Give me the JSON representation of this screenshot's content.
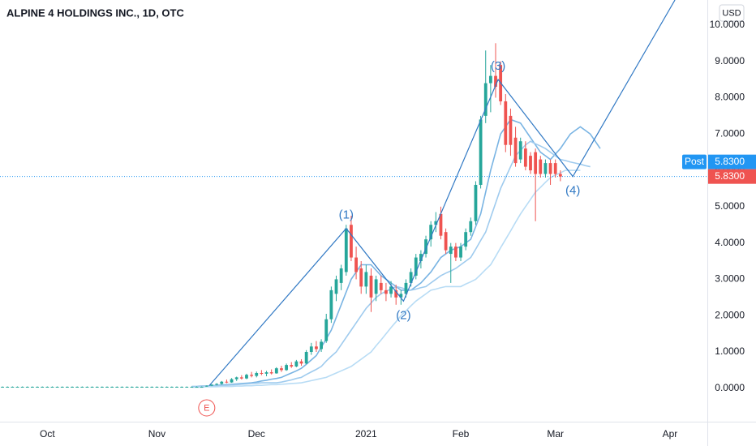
{
  "chart_data": {
    "type": "candlestick",
    "title": "ALPINE 4 HOLDINGS INC., 1D, OTC",
    "currency": "USD",
    "categories": [
      null,
      null,
      null,
      null,
      null,
      null,
      null,
      null,
      null,
      "Oct",
      null,
      null,
      null,
      null,
      null,
      null,
      null,
      null,
      null,
      null,
      null,
      null,
      null,
      null,
      null,
      null,
      null,
      null,
      null,
      null,
      null,
      "Nov",
      null,
      null,
      null,
      null,
      null,
      null,
      null,
      null,
      null,
      null,
      null,
      null,
      null,
      null,
      null,
      null,
      null,
      null,
      null,
      "Dec",
      null,
      null,
      null,
      null,
      null,
      null,
      null,
      null,
      null,
      null,
      null,
      null,
      null,
      null,
      null,
      null,
      null,
      null,
      null,
      null,
      null,
      "2021",
      null,
      null,
      null,
      null,
      null,
      null,
      null,
      null,
      null,
      null,
      null,
      null,
      null,
      null,
      null,
      null,
      null,
      null,
      "Feb",
      null,
      null,
      null,
      null,
      null,
      null,
      null,
      null,
      null,
      null,
      null,
      null,
      null,
      null,
      null,
      null,
      null,
      null,
      "Mar",
      null,
      null,
      null,
      null,
      null,
      null,
      null,
      null,
      null,
      null,
      null,
      null,
      null,
      null,
      null,
      null,
      null,
      null,
      null,
      null,
      null,
      null,
      "Apr",
      null,
      null,
      null,
      null,
      null,
      null,
      null
    ],
    "open": [
      0.04,
      0.04,
      0.04,
      0.04,
      0.04,
      0.04,
      0.04,
      0.04,
      0.04,
      0.04,
      0.04,
      0.04,
      0.04,
      0.04,
      0.04,
      0.04,
      0.04,
      0.04,
      0.04,
      0.04,
      0.04,
      0.04,
      0.04,
      0.04,
      0.04,
      0.04,
      0.04,
      0.04,
      0.04,
      0.04,
      0.04,
      0.04,
      0.04,
      0.04,
      0.04,
      0.04,
      0.04,
      0.04,
      0.04,
      0.04,
      0.04,
      0.05,
      0.07,
      0.1,
      0.12,
      0.18,
      0.16,
      0.25,
      0.3,
      0.27,
      0.37,
      0.34,
      0.42,
      0.4,
      0.44,
      0.41,
      0.55,
      0.5,
      0.64,
      0.6,
      0.74,
      0.68,
      1.0,
      1.15,
      1.08,
      1.3,
      1.9,
      2.6,
      2.9,
      3.2,
      4.5,
      3.6,
      3.3,
      2.8,
      3.1,
      2.6,
      2.9,
      2.7,
      2.6,
      2.7,
      2.5,
      2.6,
      2.9,
      3.1,
      3.5,
      3.7,
      4.1,
      4.5,
      4.8,
      4.3,
      3.7,
      3.9,
      3.6,
      3.9,
      4.3,
      4.6,
      5.6,
      7.5,
      8.4,
      8.6,
      8.9,
      7.9,
      7.5,
      6.9,
      6.3,
      6.6,
      6.4,
      6.5,
      6.3,
      5.9,
      6.2,
      6.2,
      5.9,
      null,
      null,
      null,
      null,
      null,
      null,
      null,
      null,
      null,
      null,
      null,
      null,
      null,
      null,
      null,
      null,
      null,
      null,
      null,
      null,
      null,
      null,
      null,
      null,
      null,
      null,
      null,
      null,
      null
    ],
    "high": [
      0.05,
      0.05,
      0.05,
      0.05,
      0.05,
      0.05,
      0.05,
      0.05,
      0.05,
      0.05,
      0.05,
      0.05,
      0.05,
      0.05,
      0.05,
      0.05,
      0.05,
      0.05,
      0.05,
      0.05,
      0.05,
      0.05,
      0.05,
      0.05,
      0.05,
      0.05,
      0.05,
      0.05,
      0.05,
      0.05,
      0.05,
      0.05,
      0.05,
      0.05,
      0.05,
      0.05,
      0.05,
      0.05,
      0.05,
      0.05,
      0.05,
      0.08,
      0.11,
      0.14,
      0.2,
      0.24,
      0.28,
      0.32,
      0.36,
      0.4,
      0.45,
      0.46,
      0.5,
      0.48,
      0.52,
      0.58,
      0.62,
      0.68,
      0.72,
      0.78,
      0.8,
      1.05,
      1.25,
      1.3,
      1.35,
      2.05,
      2.8,
      3.1,
      3.4,
      4.5,
      4.75,
      3.9,
      3.5,
      3.4,
      3.3,
      3.1,
      3.1,
      2.9,
      2.95,
      2.85,
      2.7,
      3.0,
      3.3,
      3.7,
      3.8,
      4.2,
      4.6,
      4.85,
      5.0,
      4.4,
      4.0,
      4.0,
      4.0,
      4.4,
      4.7,
      5.7,
      7.5,
      9.3,
      8.9,
      9.5,
      9.0,
      8.1,
      7.7,
      7.2,
      6.9,
      6.8,
      6.5,
      6.6,
      6.4,
      6.3,
      6.3,
      6.3,
      6.0,
      null,
      null,
      null,
      null,
      null,
      null,
      null,
      null,
      null,
      null,
      null,
      null,
      null,
      null,
      null,
      null,
      null,
      null,
      null,
      null,
      null,
      null,
      null,
      null,
      null,
      null,
      null,
      null,
      null
    ],
    "low": [
      0.03,
      0.03,
      0.03,
      0.03,
      0.03,
      0.03,
      0.03,
      0.03,
      0.03,
      0.03,
      0.03,
      0.03,
      0.03,
      0.03,
      0.03,
      0.03,
      0.03,
      0.03,
      0.03,
      0.03,
      0.03,
      0.03,
      0.03,
      0.03,
      0.03,
      0.03,
      0.03,
      0.03,
      0.03,
      0.03,
      0.03,
      0.03,
      0.03,
      0.03,
      0.03,
      0.03,
      0.03,
      0.03,
      0.03,
      0.03,
      0.03,
      0.04,
      0.06,
      0.08,
      0.1,
      0.14,
      0.15,
      0.2,
      0.24,
      0.25,
      0.3,
      0.3,
      0.36,
      0.33,
      0.38,
      0.4,
      0.45,
      0.48,
      0.56,
      0.58,
      0.62,
      0.66,
      0.92,
      1.0,
      1.0,
      1.25,
      1.8,
      2.4,
      2.7,
      3.1,
      3.5,
      3.0,
      2.6,
      2.6,
      2.1,
      2.4,
      2.6,
      2.4,
      2.5,
      2.3,
      2.3,
      2.5,
      2.8,
      3.0,
      3.3,
      3.6,
      3.9,
      4.3,
      4.1,
      3.7,
      2.9,
      3.5,
      3.5,
      3.8,
      4.2,
      4.5,
      5.5,
      7.3,
      7.6,
      8.0,
      7.8,
      6.5,
      6.4,
      6.1,
      6.2,
      6.0,
      5.9,
      4.6,
      5.8,
      5.8,
      5.6,
      5.8,
      5.7,
      null,
      null,
      null,
      null,
      null,
      null,
      null,
      null,
      null,
      null,
      null,
      null,
      null,
      null,
      null,
      null,
      null,
      null,
      null,
      null,
      null,
      null,
      null,
      null,
      null,
      null,
      null,
      null,
      null
    ],
    "close": [
      0.04,
      0.04,
      0.04,
      0.04,
      0.04,
      0.04,
      0.04,
      0.04,
      0.04,
      0.04,
      0.04,
      0.04,
      0.04,
      0.04,
      0.04,
      0.04,
      0.04,
      0.04,
      0.04,
      0.04,
      0.04,
      0.04,
      0.04,
      0.04,
      0.04,
      0.04,
      0.04,
      0.04,
      0.04,
      0.04,
      0.04,
      0.04,
      0.04,
      0.04,
      0.04,
      0.04,
      0.04,
      0.04,
      0.04,
      0.04,
      0.04,
      0.07,
      0.1,
      0.12,
      0.18,
      0.16,
      0.25,
      0.3,
      0.27,
      0.37,
      0.34,
      0.42,
      0.4,
      0.44,
      0.41,
      0.55,
      0.5,
      0.64,
      0.6,
      0.74,
      0.68,
      1.0,
      1.15,
      1.08,
      1.28,
      1.9,
      2.7,
      3.0,
      3.3,
      4.4,
      3.6,
      3.2,
      2.8,
      3.2,
      2.5,
      3.0,
      2.7,
      2.6,
      2.8,
      2.5,
      2.6,
      2.9,
      3.2,
      3.6,
      3.7,
      4.1,
      4.5,
      4.6,
      4.2,
      3.8,
      3.9,
      3.6,
      3.9,
      4.3,
      4.6,
      5.6,
      7.4,
      8.4,
      8.6,
      8.3,
      7.9,
      6.7,
      6.7,
      6.2,
      6.8,
      6.1,
      6.0,
      5.9,
      5.9,
      6.2,
      5.9,
      5.9,
      5.83,
      null,
      null,
      null,
      null,
      null,
      null,
      null,
      null,
      null,
      null,
      null,
      null,
      null,
      null,
      null,
      null,
      null,
      null,
      null,
      null,
      null,
      null,
      null,
      null,
      null,
      null,
      null,
      null,
      null
    ],
    "up_color": "#26a69a",
    "down_color": "#ef5350",
    "lines": [
      {
        "color": "#79b4e3",
        "values": [
          null,
          null,
          null,
          null,
          null,
          null,
          null,
          null,
          null,
          null,
          null,
          null,
          null,
          null,
          null,
          null,
          null,
          null,
          null,
          null,
          null,
          null,
          null,
          null,
          null,
          null,
          null,
          null,
          null,
          null,
          null,
          null,
          null,
          null,
          null,
          null,
          null,
          null,
          0.05,
          0.05,
          0.06,
          0.06,
          0.07,
          0.08,
          0.09,
          0.1,
          0.11,
          0.12,
          0.13,
          0.14,
          0.15,
          0.17,
          0.2,
          0.22,
          0.25,
          0.27,
          0.3,
          0.36,
          0.42,
          0.48,
          0.55,
          0.66,
          0.78,
          0.9,
          1.13,
          1.36,
          1.6,
          1.95,
          2.3,
          2.65,
          3.0,
          3.2,
          3.4,
          3.4,
          3.4,
          3.25,
          3.1,
          3.0,
          2.9,
          2.8,
          2.7,
          2.7,
          2.7,
          2.8,
          2.9,
          3.05,
          3.2,
          3.4,
          3.6,
          3.7,
          3.8,
          3.85,
          3.9,
          4.0,
          4.1,
          4.45,
          4.8,
          5.4,
          6.0,
          6.5,
          7.0,
          7.2,
          7.4,
          7.35,
          7.3,
          7.1,
          6.9,
          6.7,
          6.5,
          6.4,
          6.3,
          6.45,
          6.6,
          6.8,
          7.0,
          7.1,
          7.2,
          7.1,
          7.0,
          6.8,
          6.6,
          null,
          null,
          null,
          null,
          null,
          null,
          null,
          null,
          null,
          null,
          null,
          null,
          null,
          null,
          null,
          null,
          null,
          null,
          null,
          null,
          null
        ]
      },
      {
        "color": "#9fcbee",
        "values": [
          null,
          null,
          null,
          null,
          null,
          null,
          null,
          null,
          null,
          null,
          null,
          null,
          null,
          null,
          null,
          null,
          null,
          null,
          null,
          null,
          null,
          null,
          null,
          null,
          null,
          null,
          null,
          null,
          null,
          null,
          null,
          null,
          null,
          null,
          null,
          null,
          null,
          null,
          0.04,
          0.04,
          0.05,
          0.05,
          0.06,
          0.06,
          0.07,
          0.08,
          0.09,
          0.1,
          0.11,
          0.12,
          0.13,
          0.14,
          0.15,
          0.15,
          0.15,
          0.15,
          0.17,
          0.2,
          0.23,
          0.27,
          0.3,
          0.38,
          0.45,
          0.52,
          0.6,
          0.75,
          0.88,
          1.0,
          1.2,
          1.4,
          1.6,
          1.8,
          2.0,
          2.2,
          2.35,
          2.5,
          2.6,
          2.67,
          2.73,
          2.8,
          2.77,
          2.73,
          2.7,
          2.73,
          2.77,
          2.8,
          2.9,
          3.0,
          3.1,
          3.17,
          3.23,
          3.3,
          3.4,
          3.5,
          3.6,
          3.83,
          4.07,
          4.3,
          4.7,
          5.1,
          5.5,
          5.8,
          6.1,
          6.4,
          6.55,
          6.7,
          6.8,
          6.73,
          6.67,
          6.6,
          6.5,
          6.4,
          6.3,
          6.27,
          6.23,
          6.2,
          6.17,
          6.13,
          6.1,
          null,
          null,
          null,
          null,
          null,
          null,
          null,
          null,
          null,
          null,
          null,
          null,
          null,
          null,
          null,
          null,
          null,
          null,
          null,
          null,
          null,
          null,
          null
        ]
      },
      {
        "color": "#b8dcf5",
        "values": [
          null,
          null,
          null,
          null,
          null,
          null,
          null,
          null,
          null,
          null,
          null,
          null,
          null,
          null,
          null,
          null,
          null,
          null,
          null,
          null,
          null,
          null,
          null,
          null,
          null,
          null,
          null,
          null,
          null,
          null,
          null,
          null,
          null,
          null,
          null,
          null,
          null,
          null,
          0.03,
          0.03,
          0.03,
          0.04,
          0.04,
          0.04,
          0.05,
          0.05,
          0.05,
          0.06,
          0.06,
          0.07,
          0.07,
          0.08,
          0.08,
          0.09,
          0.1,
          0.1,
          0.11,
          0.12,
          0.13,
          0.14,
          0.15,
          0.18,
          0.21,
          0.24,
          0.27,
          0.3,
          0.36,
          0.42,
          0.48,
          0.54,
          0.6,
          0.7,
          0.8,
          0.9,
          1.0,
          1.17,
          1.33,
          1.5,
          1.67,
          1.83,
          2.0,
          2.13,
          2.27,
          2.4,
          2.5,
          2.6,
          2.7,
          2.73,
          2.77,
          2.8,
          2.8,
          2.8,
          2.8,
          2.87,
          2.93,
          3.0,
          3.13,
          3.27,
          3.4,
          3.63,
          3.87,
          4.1,
          4.33,
          4.57,
          4.8,
          5.0,
          5.2,
          5.4,
          5.53,
          5.67,
          5.8,
          5.87,
          5.93,
          6.0,
          6.0,
          6.0,
          6.0,
          null,
          null,
          null,
          null,
          null,
          null,
          null,
          null,
          null,
          null,
          null,
          null,
          null,
          null,
          null,
          null,
          null,
          null,
          null,
          null,
          null,
          null,
          null,
          null,
          null
        ]
      }
    ],
    "wave": {
      "color": "#3179c4",
      "x": [
        41.5,
        69,
        80.5,
        99.5,
        114.5,
        135
      ],
      "y": [
        0.07,
        4.4,
        2.4,
        8.5,
        5.83,
        10.69
      ],
      "labels": [
        "(1)",
        "(2)",
        "(3)",
        "(4)"
      ]
    },
    "events": [
      {
        "label": "E",
        "x": 41,
        "color": "#ef5350"
      }
    ],
    "last_price": 5.83,
    "last_price_label": "5.8300",
    "post_label": "Post",
    "post_price_label": "5.8300",
    "post_color": "#2196f3",
    "ylim": [
      -0.92,
      10.69
    ],
    "yticks": [
      {
        "value": 0,
        "label": "0.0000"
      },
      {
        "value": 1,
        "label": "1.0000"
      },
      {
        "value": 2,
        "label": "2.0000"
      },
      {
        "value": 3,
        "label": "3.0000"
      },
      {
        "value": 4,
        "label": "4.0000"
      },
      {
        "value": 5,
        "label": "5.0000"
      },
      {
        "value": 6,
        "label": "6.0000"
      },
      {
        "value": 7,
        "label": "7.0000"
      },
      {
        "value": 8,
        "label": "8.0000"
      },
      {
        "value": 9,
        "label": "9.0000"
      },
      {
        "value": 10,
        "label": "10.0000"
      }
    ],
    "grid": false
  }
}
